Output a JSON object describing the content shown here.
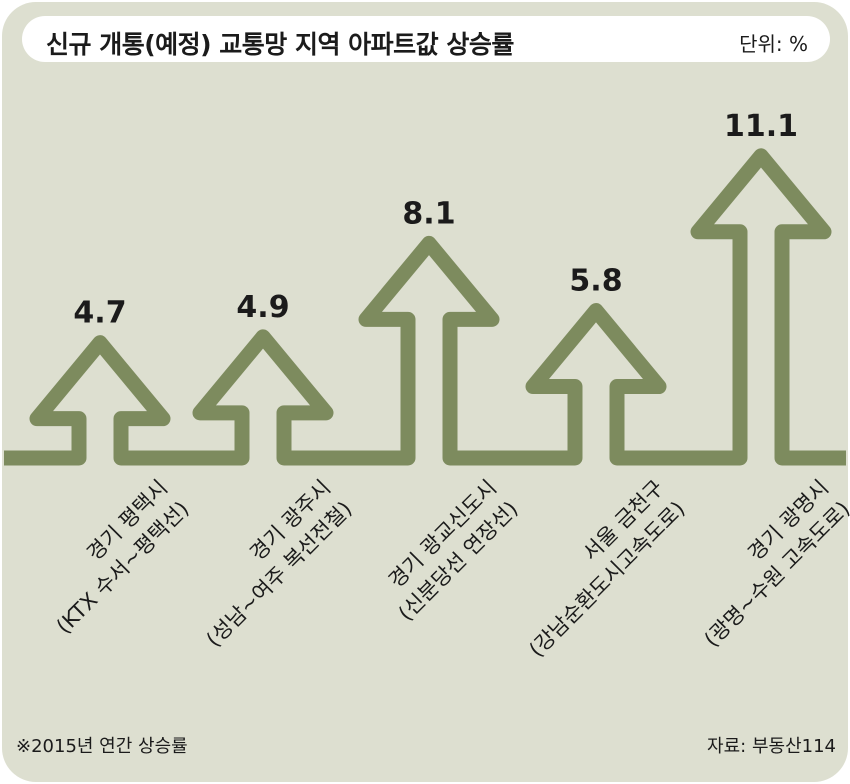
{
  "header": {
    "title": "신규 개통(예정) 교통망 지역 아파트값 상승률",
    "unit": "단위: %"
  },
  "chart_data": {
    "type": "bar",
    "title": "신규 개통(예정) 교통망 지역 아파트값 상승률",
    "unit": "%",
    "categories": [
      [
        "경기 평택시",
        "(KTX 수서~평택선)"
      ],
      [
        "경기 광주시",
        "(성남~여주 복선전철)"
      ],
      [
        "경기 광교신도시",
        "(신분당선 연장선)"
      ],
      [
        "서울 금천구",
        "(강남순환도시고속도로)"
      ],
      [
        "경기 광명시",
        "(광명~수원 고속도로)"
      ]
    ],
    "values": [
      4.7,
      4.9,
      8.1,
      5.8,
      11.1
    ],
    "value_labels": [
      "4.7",
      "4.9",
      "8.1",
      "5.8",
      "11.1"
    ],
    "style": "arrows",
    "arrow_color": "#7d8b5e"
  },
  "footer": {
    "note": "※2015년 연간 상승률",
    "source": "자료: 부동산114"
  }
}
